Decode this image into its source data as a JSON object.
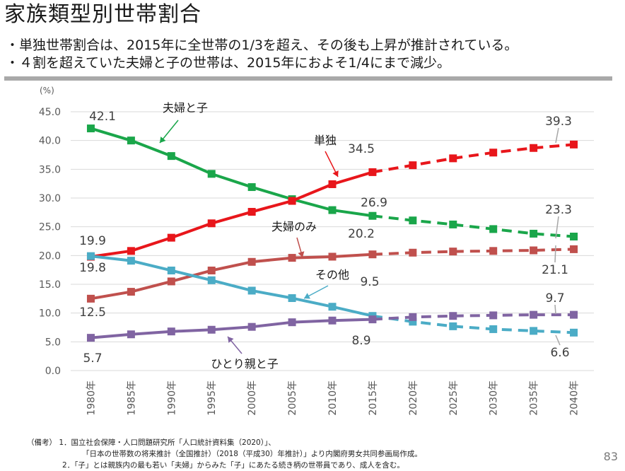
{
  "title": "家族類型別世帯割合",
  "bullets": [
    "・単独世帯割合は、2015年に全世帯の1/3を超え、その後も上昇が推計されている。",
    "・４割を超えていた夫婦と子の世帯は、2015年におよそ1/4にまで減少。"
  ],
  "notes": [
    "（備考） 1．国立社会保障・人口問題研究所「人口統計資料集（2020）」、",
    "「日本の世帯数の将来推計（全国推計）（2018（平成30）年推計）」より内閣府男女共同参画局作成。",
    "2．「子」とは親族内の最も若い「夫婦」からみた「子」にあたる続き柄の世帯員であり、成人を含む。"
  ],
  "page_number": "83",
  "chart_data": {
    "type": "line",
    "unit_label": "(%)",
    "categories": [
      "1980年",
      "1985年",
      "1990年",
      "1995年",
      "2000年",
      "2005年",
      "2010年",
      "2015年",
      "2020年",
      "2025年",
      "2030年",
      "2035年",
      "2040年"
    ],
    "ylim": [
      0,
      45
    ],
    "yticks": [
      "0.0",
      "5.0",
      "10.0",
      "15.0",
      "20.0",
      "25.0",
      "30.0",
      "35.0",
      "40.0",
      "45.0"
    ],
    "projection_from_index": 7,
    "grid": "horizontal",
    "series": [
      {
        "name": "夫婦と子",
        "color": "#1aa64a",
        "values": [
          42.1,
          40.0,
          37.3,
          34.2,
          31.9,
          29.8,
          27.9,
          26.9,
          26.1,
          25.4,
          24.6,
          23.8,
          23.3
        ]
      },
      {
        "name": "単独",
        "color": "#e8161b",
        "values": [
          19.8,
          20.8,
          23.1,
          25.6,
          27.6,
          29.5,
          32.4,
          34.5,
          35.7,
          36.9,
          37.9,
          38.7,
          39.3
        ]
      },
      {
        "name": "夫婦のみ",
        "color": "#c0504d",
        "values": [
          12.5,
          13.7,
          15.5,
          17.4,
          18.9,
          19.6,
          19.8,
          20.2,
          20.5,
          20.7,
          20.8,
          20.9,
          21.1
        ]
      },
      {
        "name": "その他",
        "color": "#4bacc6",
        "values": [
          19.9,
          19.1,
          17.4,
          15.7,
          13.9,
          12.6,
          11.1,
          9.5,
          8.5,
          7.7,
          7.2,
          6.9,
          6.6
        ]
      },
      {
        "name": "ひとり親と子",
        "color": "#8064a2",
        "values": [
          5.7,
          6.3,
          6.8,
          7.1,
          7.6,
          8.4,
          8.7,
          8.9,
          9.3,
          9.5,
          9.6,
          9.7,
          9.7
        ]
      }
    ],
    "data_labels": [
      {
        "text": "42.1"
      },
      {
        "text": "19.9"
      },
      {
        "text": "19.8"
      },
      {
        "text": "12.5"
      },
      {
        "text": "5.7"
      },
      {
        "text": "34.5"
      },
      {
        "text": "26.9"
      },
      {
        "text": "20.2"
      },
      {
        "text": "9.5"
      },
      {
        "text": "8.9"
      },
      {
        "text": "39.3"
      },
      {
        "text": "23.3"
      },
      {
        "text": "21.1"
      },
      {
        "text": "9.7"
      },
      {
        "text": "6.6"
      }
    ]
  }
}
